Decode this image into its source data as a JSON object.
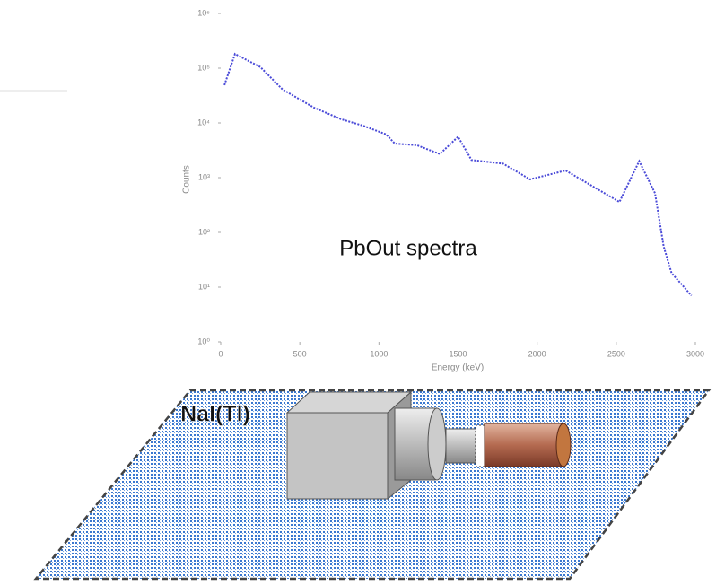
{
  "chart_data": {
    "type": "line",
    "x_label": "Energy (keV)",
    "y_label": "Counts",
    "annotations": [
      "PbOut spectra",
      "NaI(Tl)"
    ],
    "log_y": true,
    "xlim": [
      0,
      3000
    ],
    "xticks": [
      0,
      500,
      1000,
      1500,
      2000,
      2500,
      3000
    ],
    "ylim": [
      1,
      1000000
    ],
    "yticks": [
      {
        "value": 1,
        "label": "10⁰"
      },
      {
        "value": 10,
        "label": "10¹"
      },
      {
        "value": 100,
        "label": "10²"
      },
      {
        "value": 1000,
        "label": "10³"
      },
      {
        "value": 10000,
        "label": "10⁴"
      },
      {
        "value": 100000,
        "label": "10⁵"
      },
      {
        "value": 1000000,
        "label": "10⁶"
      }
    ],
    "series": [
      {
        "color": "#4a4ad8",
        "x": [
          23,
          90,
          250,
          390,
          590,
          760,
          900,
          1045,
          1100,
          1240,
          1385,
          1500,
          1585,
          1785,
          1955,
          2180,
          2520,
          2645,
          2745,
          2800,
          2850,
          2905,
          2975
        ],
        "values": [
          49000,
          182000,
          105000,
          41000,
          19000,
          11700,
          8900,
          6200,
          4200,
          3900,
          2700,
          5600,
          2100,
          1800,
          930,
          1350,
          360,
          2000,
          520,
          55,
          18,
          12,
          7
        ]
      }
    ]
  }
}
